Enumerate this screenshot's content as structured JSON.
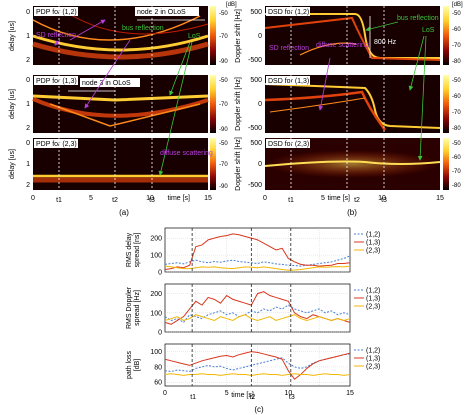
{
  "chart_data": {
    "type": "heatmap",
    "panels": {
      "pdp12": {
        "title": "PDP for (1,2)",
        "ylabel": "delay [us]",
        "yticks": [
          "0",
          "1",
          "2"
        ],
        "cbar_unit": "[dB]",
        "cbar_ticks": [
          "-50",
          "-70",
          "-90"
        ],
        "ylim": [
          0,
          2.2
        ],
        "clim": [
          -90,
          -50
        ]
      },
      "pdp13": {
        "title": "PDP for (1,3)",
        "ylabel": "delay [us]",
        "yticks": [
          "0",
          "1",
          "2"
        ],
        "cbar_ticks": [
          "-50",
          "-70",
          "-90"
        ],
        "ylim": [
          0,
          2.2
        ],
        "clim": [
          -90,
          -50
        ]
      },
      "pdp23": {
        "title": "PDP for (2,3)",
        "ylabel": "delay [us]",
        "yticks": [
          "0",
          "1",
          "2"
        ],
        "cbar_ticks": [
          "-50",
          "-70",
          "-90"
        ],
        "ylim": [
          0,
          2.2
        ],
        "clim": [
          -90,
          -50
        ]
      },
      "dsd12": {
        "title": "DSD for (1,2)",
        "ylabel": "Doppler shift [Hz]",
        "yticks": [
          "500",
          "0",
          "-500"
        ],
        "cbar_unit": "[dB]",
        "cbar_ticks": [
          "-50",
          "-60",
          "-70",
          "-80"
        ],
        "ylim": [
          -500,
          500
        ],
        "clim": [
          -80,
          -50
        ]
      },
      "dsd13": {
        "title": "DSD for (1,3)",
        "ylabel": "Doppler shift [Hz]",
        "yticks": [
          "500",
          "0",
          "-500"
        ],
        "cbar_ticks": [
          "-50",
          "-60",
          "-70",
          "-80"
        ],
        "ylim": [
          -500,
          500
        ],
        "clim": [
          -80,
          -50
        ]
      },
      "dsd23": {
        "title": "DSD for (2,3)",
        "ylabel": "Doppler shift [Hz]",
        "yticks": [
          "500",
          "0",
          "-500"
        ],
        "cbar_ticks": [
          "-50",
          "-60",
          "-70",
          "-80"
        ],
        "ylim": [
          -500,
          500
        ],
        "clim": [
          -80,
          -50
        ]
      }
    },
    "time_axis": {
      "label": "time [s]",
      "xlim": [
        0,
        15
      ],
      "ticks": [
        "0",
        "5",
        "10",
        "15"
      ]
    },
    "event_markers": [
      {
        "label": "t1",
        "time": 2.2
      },
      {
        "label": "t2",
        "time": 7.0
      },
      {
        "label": "t3",
        "time": 10.2
      }
    ],
    "annotations": {
      "node2_olos": "node 2 in OLoS",
      "node3_olos": "node 3 in OLoS",
      "sd_reflection": "SD reflection",
      "bus_reflection": "bus reflection",
      "los": "LoS",
      "diffuse_scattering": "diffuse scattering",
      "hz800": "800 Hz"
    },
    "subfig_labels": [
      "(a)",
      "(b)",
      "(c)"
    ],
    "line_panels": [
      {
        "ylabel": "RMS delay spread [ns]",
        "yticks": [
          "200",
          "100",
          "0"
        ],
        "ylim": [
          0,
          260
        ],
        "series": [
          {
            "name": "(1,2)",
            "color": "#4a7fd4",
            "dash": true,
            "x": [
              0,
              0.5,
              1,
              1.5,
              2,
              2.5,
              3,
              3.5,
              4,
              4.5,
              5,
              5.5,
              6,
              6.5,
              7,
              7.5,
              8,
              8.5,
              9,
              9.5,
              10,
              10.5,
              11,
              11.5,
              12,
              12.5,
              13,
              13.5,
              14,
              14.5,
              15
            ],
            "values": [
              45,
              50,
              55,
              48,
              60,
              70,
              60,
              55,
              62,
              58,
              65,
              70,
              62,
              58,
              55,
              50,
              60,
              55,
              48,
              45,
              40,
              38,
              35,
              40,
              45,
              50,
              55,
              60,
              70,
              80,
              95
            ]
          },
          {
            "name": "(1,3)",
            "color": "#d9381e",
            "dash": false,
            "x": [
              0,
              0.5,
              1,
              1.5,
              2,
              2.5,
              3,
              3.5,
              4,
              4.5,
              5,
              5.5,
              6,
              6.5,
              7,
              7.5,
              8,
              8.5,
              9,
              9.5,
              10,
              10.5,
              11,
              11.5,
              12,
              12.5,
              13,
              13.5,
              14,
              14.5,
              15
            ],
            "values": [
              15,
              20,
              30,
              25,
              40,
              150,
              160,
              190,
              200,
              210,
              215,
              225,
              220,
              210,
              200,
              190,
              170,
              150,
              130,
              140,
              80,
              60,
              45,
              40,
              40,
              35,
              38,
              40,
              50,
              50,
              55
            ]
          },
          {
            "name": "(2,3)",
            "color": "#f2b705",
            "dash": false,
            "x": [
              0,
              0.5,
              1,
              1.5,
              2,
              2.5,
              3,
              3.5,
              4,
              4.5,
              5,
              5.5,
              6,
              6.5,
              7,
              7.5,
              8,
              8.5,
              9,
              9.5,
              10,
              10.5,
              11,
              11.5,
              12,
              12.5,
              13,
              13.5,
              14,
              14.5,
              15
            ],
            "values": [
              35,
              30,
              25,
              20,
              20,
              25,
              30,
              28,
              30,
              25,
              22,
              20,
              25,
              30,
              28,
              25,
              30,
              25,
              20,
              15,
              10,
              12,
              15,
              20,
              25,
              30,
              28,
              30,
              32,
              30,
              35
            ]
          }
        ]
      },
      {
        "ylabel": "RMS Doppler spread [Hz]",
        "yticks": [
          "200",
          "100",
          "0"
        ],
        "ylim": [
          0,
          250
        ],
        "series": [
          {
            "name": "(1,2)",
            "color": "#4a7fd4",
            "dash": true,
            "x": [
              0,
              0.5,
              1,
              1.5,
              2,
              2.5,
              3,
              3.5,
              4,
              4.5,
              5,
              5.5,
              6,
              6.5,
              7,
              7.5,
              8,
              8.5,
              9,
              9.5,
              10,
              10.5,
              11,
              11.5,
              12,
              12.5,
              13,
              13.5,
              14,
              14.5,
              15
            ],
            "values": [
              80,
              60,
              70,
              50,
              90,
              80,
              70,
              90,
              100,
              110,
              90,
              100,
              80,
              90,
              110,
              100,
              120,
              110,
              130,
              120,
              140,
              120,
              110,
              100,
              110,
              120,
              100,
              110,
              90,
              100,
              90
            ]
          },
          {
            "name": "(1,3)",
            "color": "#d9381e",
            "dash": false,
            "x": [
              0,
              0.5,
              1,
              1.5,
              2,
              2.5,
              3,
              3.5,
              4,
              4.5,
              5,
              5.5,
              6,
              6.5,
              7,
              7.5,
              8,
              8.5,
              9,
              9.5,
              10,
              10.5,
              11,
              11.5,
              12,
              12.5,
              13,
              13.5,
              14,
              14.5,
              15
            ],
            "values": [
              50,
              40,
              60,
              80,
              120,
              160,
              140,
              180,
              170,
              150,
              190,
              170,
              160,
              150,
              140,
              200,
              210,
              190,
              180,
              170,
              160,
              100,
              80,
              70,
              90,
              80,
              70,
              60,
              70,
              60,
              50
            ]
          },
          {
            "name": "(2,3)",
            "color": "#f2b705",
            "dash": false,
            "x": [
              0,
              0.5,
              1,
              1.5,
              2,
              2.5,
              3,
              3.5,
              4,
              4.5,
              5,
              5.5,
              6,
              6.5,
              7,
              7.5,
              8,
              8.5,
              9,
              9.5,
              10,
              10.5,
              11,
              11.5,
              12,
              12.5,
              13,
              13.5,
              14,
              14.5,
              15
            ],
            "values": [
              60,
              70,
              80,
              60,
              70,
              90,
              80,
              70,
              60,
              80,
              70,
              60,
              80,
              90,
              70,
              60,
              70,
              80,
              60,
              70,
              80,
              90,
              70,
              60,
              70,
              80,
              70,
              60,
              70,
              60,
              70
            ]
          }
        ]
      },
      {
        "ylabel": "path loss [dB]",
        "yticks": [
          "100",
          "80",
          "60"
        ],
        "ylim": [
          55,
          110
        ],
        "series": [
          {
            "name": "(1,2)",
            "color": "#4a7fd4",
            "dash": true,
            "x": [
              0,
              0.5,
              1,
              1.5,
              2,
              2.5,
              3,
              3.5,
              4,
              4.5,
              5,
              5.5,
              6,
              6.5,
              7,
              7.5,
              8,
              8.5,
              9,
              9.5,
              10,
              10.5,
              11,
              11.5,
              12,
              12.5,
              13,
              13.5,
              14,
              14.5,
              15
            ],
            "values": [
              75,
              74,
              76,
              75,
              74,
              78,
              80,
              82,
              80,
              81,
              78,
              76,
              78,
              80,
              82,
              84,
              86,
              88,
              90,
              92,
              85,
              80,
              78,
              80,
              85,
              88,
              90,
              92,
              94,
              96,
              97
            ]
          },
          {
            "name": "(1,3)",
            "color": "#d9381e",
            "dash": false,
            "x": [
              0,
              0.5,
              1,
              1.5,
              2,
              2.5,
              3,
              3.5,
              4,
              4.5,
              5,
              5.5,
              6,
              6.5,
              7,
              7.5,
              8,
              8.5,
              9,
              9.5,
              10,
              10.5,
              11,
              11.5,
              12,
              12.5,
              13,
              13.5,
              14,
              14.5,
              15
            ],
            "values": [
              90,
              88,
              86,
              84,
              82,
              85,
              88,
              90,
              92,
              94,
              95,
              93,
              96,
              98,
              100,
              99,
              97,
              95,
              93,
              90,
              75,
              64,
              70,
              78,
              84,
              88,
              90,
              92,
              94,
              96,
              98
            ]
          },
          {
            "name": "(2,3)",
            "color": "#f2b705",
            "dash": false,
            "x": [
              0,
              0.5,
              1,
              1.5,
              2,
              2.5,
              3,
              3.5,
              4,
              4.5,
              5,
              5.5,
              6,
              6.5,
              7,
              7.5,
              8,
              8.5,
              9,
              9.5,
              10,
              10.5,
              11,
              11.5,
              12,
              12.5,
              13,
              13.5,
              14,
              14.5,
              15
            ],
            "values": [
              70,
              71,
              70,
              69,
              70,
              70,
              71,
              70,
              70,
              69,
              70,
              71,
              70,
              70,
              69,
              70,
              71,
              70,
              70,
              69,
              70,
              71,
              70,
              70,
              69,
              70,
              71,
              70,
              70,
              69,
              70
            ]
          }
        ]
      }
    ],
    "legend_position": "right",
    "colors": {
      "grid": "#bbbbbb",
      "marker": "#222222",
      "annotation_green": "#39c43a",
      "annotation_purple": "#b93ee0"
    }
  }
}
